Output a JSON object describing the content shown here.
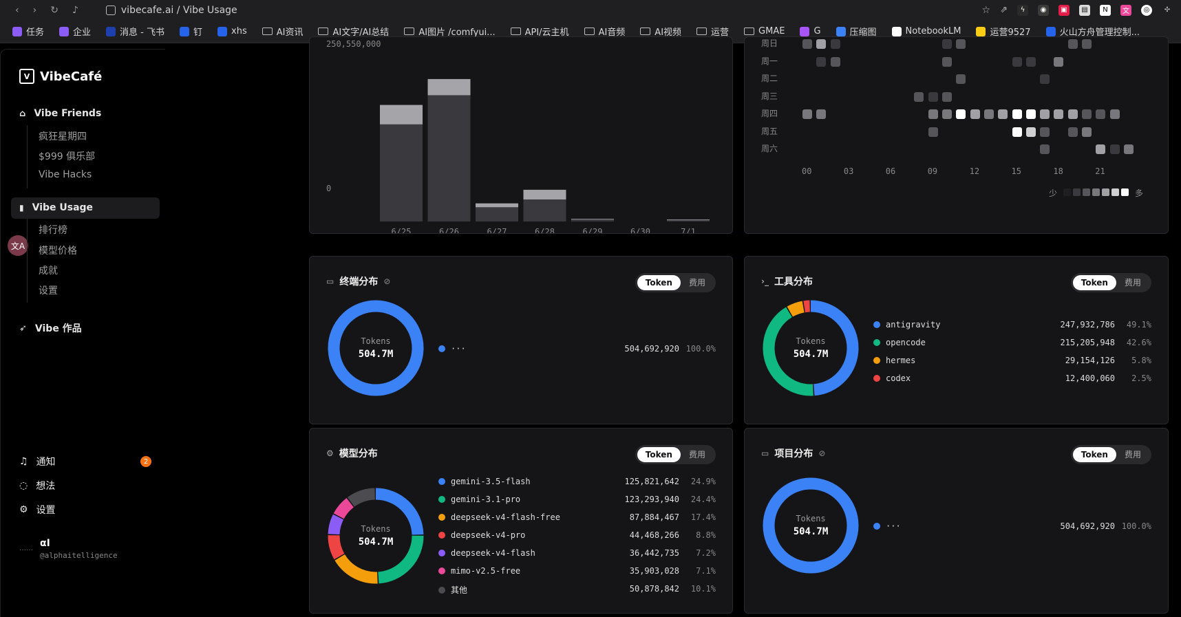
{
  "browser": {
    "url": "vibecafe.ai / Vibe Usage",
    "bookmarks": [
      "任务",
      "企业",
      "消息 - 飞书",
      "钉",
      "xhs",
      "AI资讯",
      "AI文字/AI总结",
      "AI图片 /comfyui...",
      "API/云主机",
      "AI音频",
      "AI视频",
      "运营",
      "GMAE",
      "G",
      "压缩图",
      "NotebookLM",
      "运营9527",
      "火山方舟管理控制..."
    ]
  },
  "sidebar": {
    "brand": "VibeCafé",
    "friends": {
      "label": "Vibe Friends",
      "items": [
        "疯狂星期四",
        "$999 俱乐部",
        "Vibe Hacks"
      ]
    },
    "usage": {
      "label": "Vibe Usage",
      "items": [
        "排行榜",
        "模型价格",
        "成就",
        "设置"
      ]
    },
    "works": {
      "label": "Vibe 作品"
    },
    "bottom": {
      "notify": "通知",
      "notify_count": "2",
      "ideas": "想法",
      "settings": "设置"
    },
    "user": {
      "name": "αI",
      "handle": "@alphaitelligence"
    }
  },
  "bar_chart": {
    "ytop": "250,550,000",
    "yzero": "0",
    "chart_data": {
      "type": "bar",
      "categories": [
        "6/25",
        "6/26",
        "6/27",
        "6/28",
        "6/29",
        "6/30",
        "7/1"
      ],
      "series": [
        {
          "values": [
            150000000,
            195000000,
            22000000,
            34000000,
            3000000,
            0,
            2000000
          ]
        },
        {
          "values": [
            30000000,
            25000000,
            6000000,
            15000000,
            1000000,
            0,
            1000000
          ]
        }
      ]
    }
  },
  "heatmap": {
    "rows": [
      "周日",
      "周一",
      "周二",
      "周三",
      "周四",
      "周五",
      "周六"
    ],
    "cols": [
      "00",
      "03",
      "06",
      "09",
      "12",
      "15",
      "18",
      "21"
    ],
    "less": "少",
    "more": "多",
    "colors": [
      "#1f1f22",
      "#3a3a3e",
      "#55555a",
      "#77777c",
      "#a0a0a5",
      "#d0d0d3",
      "#ffffff"
    ]
  },
  "terminal": {
    "title": "终端分布",
    "seg_token": "Token",
    "seg_fee": "费用",
    "center_label": "Tokens",
    "center_value": "504.7M",
    "legend": [
      {
        "name": "···",
        "value": "504,692,920",
        "pct": "100.0%",
        "color": "#3b82f6"
      }
    ]
  },
  "tools": {
    "title": "工具分布",
    "seg_token": "Token",
    "seg_fee": "费用",
    "center_label": "Tokens",
    "center_value": "504.7M",
    "legend": [
      {
        "name": "antigravity",
        "value": "247,932,786",
        "pct": "49.1%",
        "color": "#3b82f6",
        "share": 49.1
      },
      {
        "name": "opencode",
        "value": "215,205,948",
        "pct": "42.6%",
        "color": "#10b981",
        "share": 42.6
      },
      {
        "name": "hermes",
        "value": "29,154,126",
        "pct": "5.8%",
        "color": "#f59e0b",
        "share": 5.8
      },
      {
        "name": "codex",
        "value": "12,400,060",
        "pct": "2.5%",
        "color": "#ef4444",
        "share": 2.5
      }
    ]
  },
  "models": {
    "title": "模型分布",
    "seg_token": "Token",
    "seg_fee": "费用",
    "center_label": "Tokens",
    "center_value": "504.7M",
    "legend": [
      {
        "name": "gemini-3.5-flash",
        "value": "125,821,642",
        "pct": "24.9%",
        "color": "#3b82f6",
        "share": 24.9
      },
      {
        "name": "gemini-3.1-pro",
        "value": "123,293,940",
        "pct": "24.4%",
        "color": "#10b981",
        "share": 24.4
      },
      {
        "name": "deepseek-v4-flash-free",
        "value": "87,884,467",
        "pct": "17.4%",
        "color": "#f59e0b",
        "share": 17.4
      },
      {
        "name": "deepseek-v4-pro",
        "value": "44,468,266",
        "pct": "8.8%",
        "color": "#ef4444",
        "share": 8.8
      },
      {
        "name": "deepseek-v4-flash",
        "value": "36,442,735",
        "pct": "7.2%",
        "color": "#8b5cf6",
        "share": 7.2
      },
      {
        "name": "mimo-v2.5-free",
        "value": "35,903,028",
        "pct": "7.1%",
        "color": "#ec4899",
        "share": 7.1
      },
      {
        "name": "其他",
        "value": "50,878,842",
        "pct": "10.1%",
        "color": "#4b4b50",
        "share": 10.1
      }
    ]
  },
  "projects": {
    "title": "项目分布",
    "seg_token": "Token",
    "seg_fee": "费用",
    "center_label": "Tokens",
    "center_value": "504.7M",
    "legend": [
      {
        "name": "···",
        "value": "504,692,920",
        "pct": "100.0%",
        "color": "#3b82f6"
      }
    ]
  }
}
